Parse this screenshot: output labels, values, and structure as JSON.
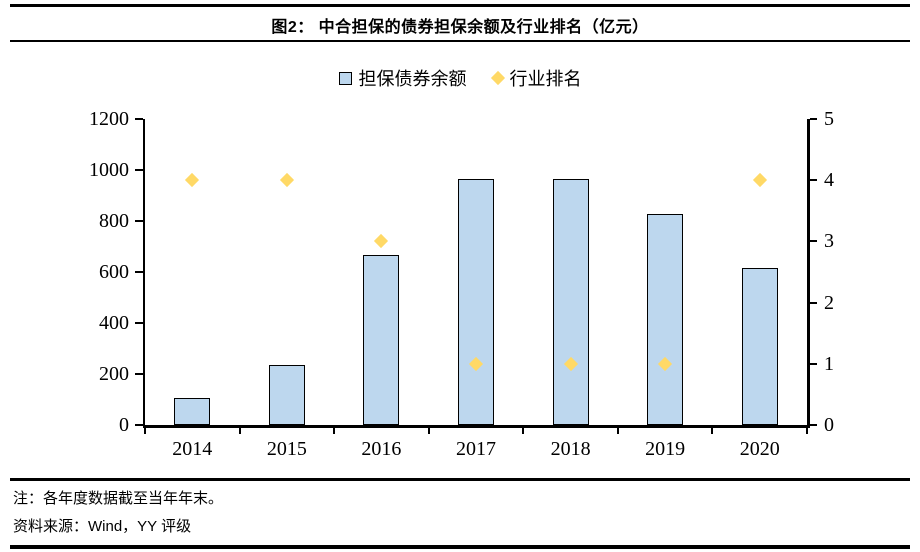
{
  "figure": {
    "title": "图2：  中合担保的债券担保余额及行业排名（亿元）",
    "note": "注：各年度数据截至当年年末。",
    "source": "资料来源：Wind，YY 评级"
  },
  "chart_data": {
    "type": "bar",
    "subtype": "combo-bar-and-diamond-scatter",
    "title": "中合担保的债券担保余额及行业排名（亿元）",
    "categories": [
      "2014",
      "2015",
      "2016",
      "2017",
      "2018",
      "2019",
      "2020"
    ],
    "series": [
      {
        "name": "担保债券余额",
        "type": "bar",
        "axis": "left",
        "values": [
          105,
          237,
          668,
          964,
          964,
          828,
          616
        ],
        "fill": "#BDD7EE",
        "stroke": "#000000"
      },
      {
        "name": "行业排名",
        "type": "scatter",
        "marker": "diamond",
        "axis": "right",
        "values": [
          4,
          4,
          3,
          1,
          1,
          1,
          4
        ],
        "fill": "#FFD966"
      }
    ],
    "left_axis": {
      "min": 0,
      "max": 1200,
      "step": 200,
      "ticks": [
        "0",
        "200",
        "400",
        "600",
        "800",
        "1000",
        "1200"
      ]
    },
    "right_axis": {
      "min": 0,
      "max": 5,
      "step": 1,
      "ticks": [
        "0",
        "1",
        "2",
        "3",
        "4",
        "5"
      ]
    },
    "legend_position": "top-center",
    "grid": false,
    "unit": "亿元"
  }
}
